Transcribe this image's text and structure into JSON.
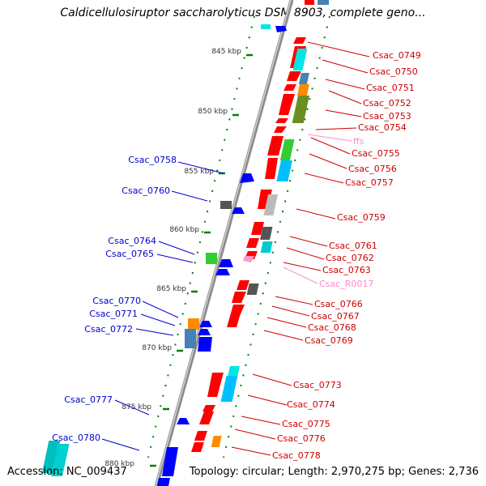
{
  "title": "Caldicellulosiruptor saccharolyticus DSM 8903, complete geno...",
  "accession": "Accession: NC_009437",
  "summary": "Topology: circular; Length: 2,970,275 bp; Genes: 2,736",
  "colors": {
    "backbone": "#8c8c8c",
    "forward_gene": "#ff0000",
    "reverse_gene": "#0000ff",
    "cds_cyan": "#00e6e6",
    "cds_olive": "#6b8e23",
    "cds_green": "#33cc33",
    "cds_orange": "#ff8c00",
    "cds_steel": "#4682b4",
    "cds_gray": "#555555",
    "cds_lightgray": "#bbbbbb",
    "rna_pink": "#ff99cc",
    "tick_green": "#008000",
    "label_red": "#cc0000",
    "label_blue": "#0000cc",
    "label_pink": "#ff88cc"
  },
  "ticks": [
    "845 kbp",
    "850 kbp",
    "855 kbp",
    "860 kbp",
    "865 kbp",
    "870 kbp",
    "875 kbp",
    "880 kbp"
  ],
  "right_labels": [
    "Csac_0749",
    "Csac_0750",
    "Csac_0751",
    "Csac_0752",
    "Csac_0753",
    "Csac_0754",
    "ffs",
    "Csac_0755",
    "Csac_0756",
    "Csac_0757",
    "Csac_0759",
    "Csac_0761",
    "Csac_0762",
    "Csac_0763",
    "Csac_R0017",
    "Csac_0766",
    "Csac_0767",
    "Csac_0768",
    "Csac_0769",
    "Csac_0773",
    "Csac_0774",
    "Csac_0775",
    "Csac_0776",
    "Csac_0778"
  ],
  "left_labels": [
    "Csac_0758",
    "Csac_0760",
    "Csac_0764",
    "Csac_0765",
    "Csac_0770",
    "Csac_0771",
    "Csac_0772",
    "Csac_0777",
    "Csac_0780"
  ]
}
